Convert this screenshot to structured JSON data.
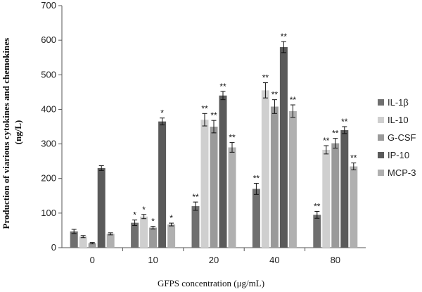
{
  "chart_data": {
    "type": "bar",
    "title": "",
    "ylabel_line1": "Production of viarious cytokines and chemokines",
    "ylabel_line2": "(ng/L)",
    "xlabel": "GFPS concentration (μg/mL)",
    "ylim": [
      0,
      700
    ],
    "yticks": [
      "0",
      "100",
      "200",
      "300",
      "400",
      "500",
      "600",
      "700"
    ],
    "categories": [
      "0",
      "10",
      "20",
      "40",
      "80"
    ],
    "series": [
      {
        "name": "IL-1β",
        "color": "#6f6f6f",
        "values": [
          47,
          72,
          120,
          170,
          95
        ],
        "errors": [
          6,
          8,
          12,
          16,
          10
        ],
        "significance": [
          "",
          "*",
          "**",
          "**",
          "**"
        ]
      },
      {
        "name": "IL-10",
        "color": "#cfcfcf",
        "values": [
          32,
          90,
          370,
          455,
          283
        ],
        "errors": [
          3,
          6,
          18,
          22,
          12
        ],
        "significance": [
          "",
          "*",
          "**",
          "**",
          "**"
        ]
      },
      {
        "name": "G-CSF",
        "color": "#9a9a9a",
        "values": [
          13,
          58,
          350,
          408,
          302
        ],
        "errors": [
          2,
          4,
          18,
          20,
          14
        ],
        "significance": [
          "",
          "*",
          "**",
          "**",
          "**"
        ]
      },
      {
        "name": "IP-10",
        "color": "#5a5a5a",
        "values": [
          230,
          365,
          440,
          580,
          340
        ],
        "errors": [
          7,
          10,
          12,
          16,
          10
        ],
        "significance": [
          "",
          "*",
          "**",
          "**",
          "**"
        ]
      },
      {
        "name": "MCP-3",
        "color": "#b0b0b0",
        "values": [
          40,
          67,
          290,
          395,
          235
        ],
        "errors": [
          3,
          4,
          14,
          18,
          10
        ],
        "significance": [
          "",
          "*",
          "**",
          "**",
          "**"
        ]
      }
    ]
  }
}
